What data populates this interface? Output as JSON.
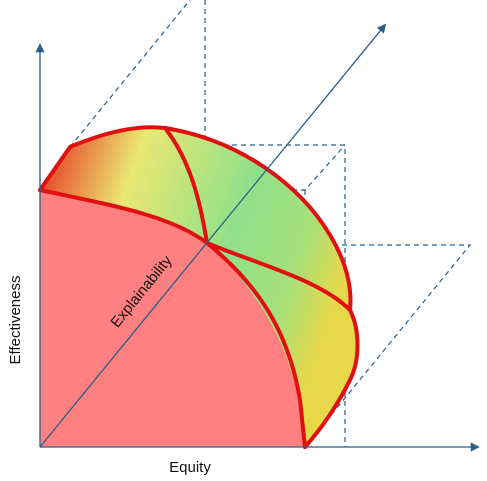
{
  "labels": {
    "y_axis": "Effectiveness",
    "x_axis": "Equity",
    "diagonal_axis": "Explainability"
  }
}
